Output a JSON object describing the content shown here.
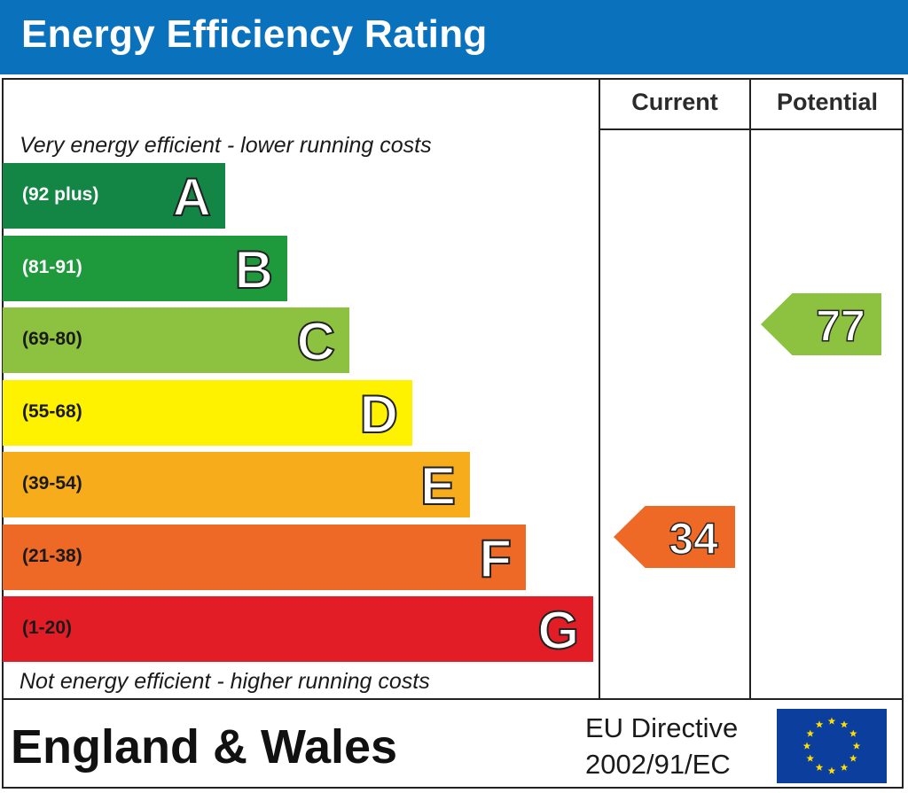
{
  "title": "Energy Efficiency Rating",
  "columns": {
    "current": "Current",
    "potential": "Potential"
  },
  "captions": {
    "top": "Very energy efficient - lower running costs",
    "bottom": "Not energy efficient - higher running costs"
  },
  "chart_data": {
    "type": "bar",
    "categories": [
      "A",
      "B",
      "C",
      "D",
      "E",
      "F",
      "G"
    ],
    "ranges": [
      "(92 plus)",
      "(81-91)",
      "(69-80)",
      "(55-68)",
      "(39-54)",
      "(21-38)",
      "(1-20)"
    ],
    "colors": [
      "#138545",
      "#1e9a3c",
      "#8cc23f",
      "#fff200",
      "#f7ac1c",
      "#ee6826",
      "#e31d25"
    ],
    "range_text_colors": [
      "#ffffff",
      "#ffffff",
      "#1a1a1a",
      "#1a1a1a",
      "#1a1a1a",
      "#1a1a1a",
      "#1a1a1a"
    ],
    "current": {
      "value": 34,
      "band": "F",
      "color": "#ee6826"
    },
    "potential": {
      "value": 77,
      "band": "C",
      "color": "#8cc23f"
    }
  },
  "footer": {
    "country": "England & Wales",
    "directive_line1": "EU Directive",
    "directive_line2": "2002/91/EC",
    "flag_icon": "eu-flag-icon"
  }
}
